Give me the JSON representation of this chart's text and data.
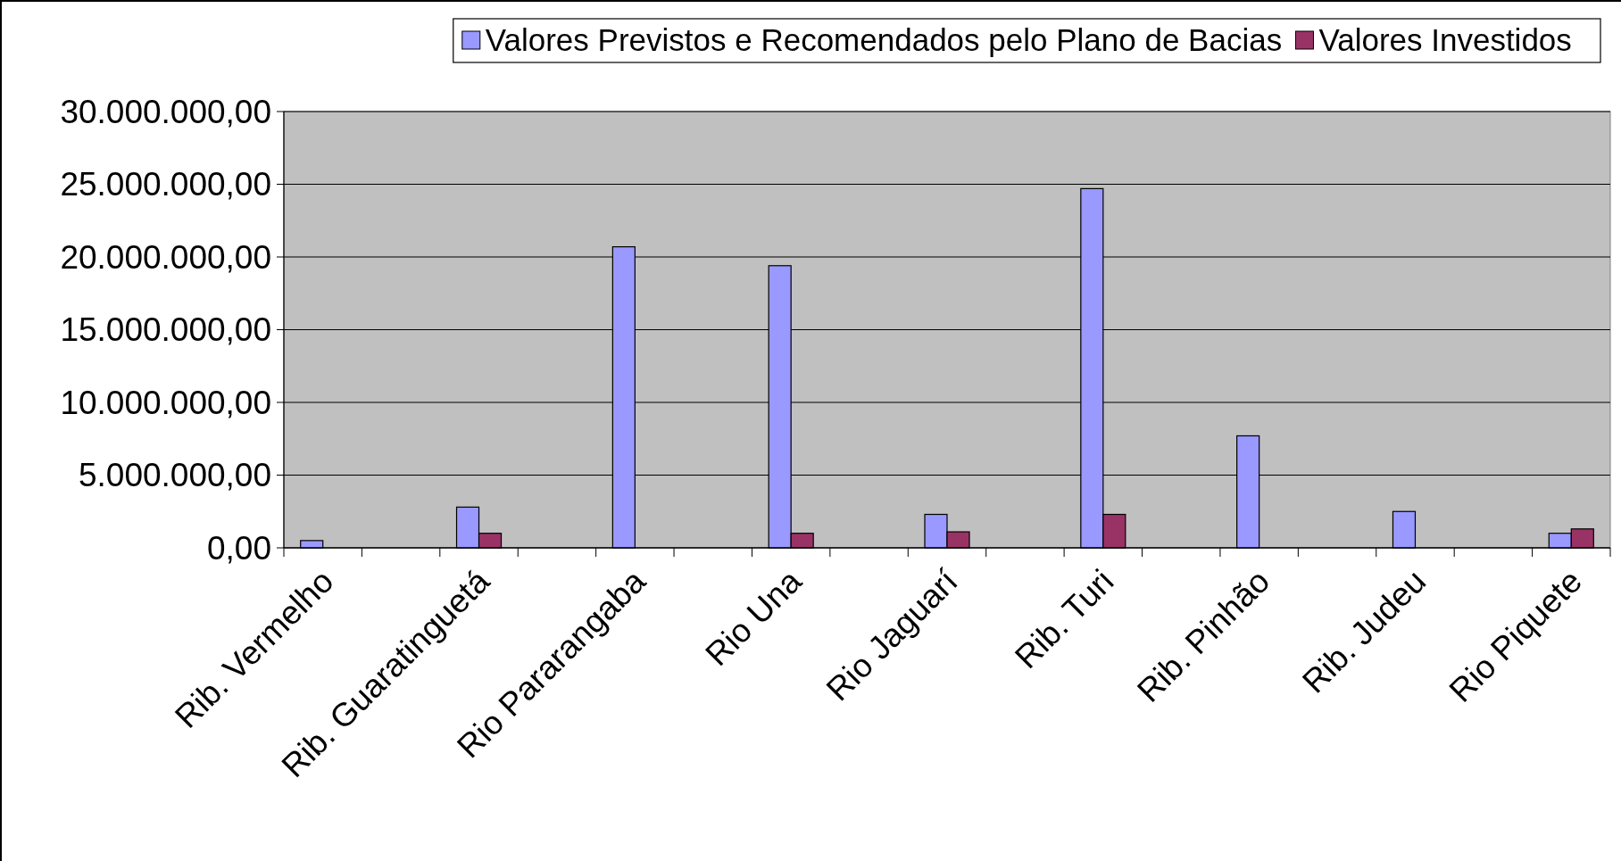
{
  "chart_data": {
    "type": "bar",
    "categories": [
      "Rib. Vermelho",
      null,
      "Rib. Guaratinguetá",
      null,
      "Rio Pararangaba",
      null,
      "Rio Una",
      null,
      "Rio Jaguarí",
      null,
      "Rib. Turi",
      null,
      "Rib. Pinhão",
      null,
      "Rib. Judeu",
      null,
      "Rio Piquete"
    ],
    "series": [
      {
        "name": "Valores Previstos e Recomendados pelo Plano de Bacias",
        "color": "#9999ff",
        "values": [
          500000,
          null,
          2800000,
          null,
          20700000,
          null,
          19400000,
          null,
          2300000,
          null,
          24700000,
          null,
          7700000,
          null,
          2500000,
          null,
          1000000
        ]
      },
      {
        "name": "Valores Investidos",
        "color": "#993366",
        "values": [
          null,
          null,
          1000000,
          null,
          null,
          null,
          1000000,
          null,
          1100000,
          null,
          2300000,
          null,
          null,
          null,
          null,
          null,
          1300000
        ]
      }
    ],
    "ylim": [
      0,
      30000000
    ],
    "yticks": [
      {
        "value": 0,
        "label": "0,00"
      },
      {
        "value": 5000000,
        "label": "5.000.000,00"
      },
      {
        "value": 10000000,
        "label": "10.000.000,00"
      },
      {
        "value": 15000000,
        "label": "15.000.000,00"
      },
      {
        "value": 20000000,
        "label": "20.000.000,00"
      },
      {
        "value": 25000000,
        "label": "25.000.000,00"
      },
      {
        "value": 30000000,
        "label": "30.000.000,00"
      }
    ],
    "grid": "y",
    "legend": "top right"
  }
}
